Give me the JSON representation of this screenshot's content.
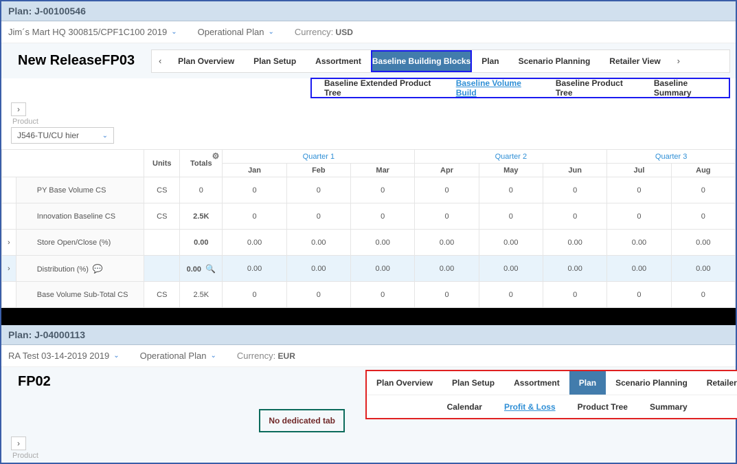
{
  "top": {
    "plan_header": "Plan: J-00100546",
    "selector1": "Jim´s Mart HQ 300815/CPF1C100  2019",
    "selector2": "Operational Plan",
    "currency_label": "Currency:",
    "currency": "USD",
    "annotation": "New ReleaseFP03",
    "tabs": {
      "prev": "‹",
      "next": "›",
      "items": [
        "Plan Overview",
        "Plan Setup",
        "Assortment",
        "Baseline Building Blocks",
        "Plan",
        "Scenario Planning",
        "Retailer View"
      ],
      "active_index": 3
    },
    "subtabs": {
      "items": [
        "Baseline Extended Product Tree",
        "Baseline Volume Build",
        "Baseline Product Tree",
        "Baseline Summary"
      ],
      "active_index": 1
    },
    "product_label": "Product",
    "product_dropdown": "J546-TU/CU hier",
    "table": {
      "units_header": "Units",
      "totals_header": "Totals",
      "quarters": [
        "Quarter 1",
        "Quarter 2",
        "Quarter 3"
      ],
      "months": [
        "Jan",
        "Feb",
        "Mar",
        "Apr",
        "May",
        "Jun",
        "Jul",
        "Aug"
      ],
      "rows": [
        {
          "label": "PY Base Volume  CS",
          "units": "CS",
          "total": "0",
          "vals": [
            "0",
            "0",
            "0",
            "0",
            "0",
            "0",
            "0",
            "0"
          ],
          "expandable": false
        },
        {
          "label": "Innovation Baseline    CS",
          "units": "CS",
          "total": "2.5K",
          "vals": [
            "0",
            "0",
            "0",
            "0",
            "0",
            "0",
            "0",
            "0"
          ],
          "expandable": false,
          "bold_total": true
        },
        {
          "label": "Store Open/Close (%)",
          "units": "",
          "total": "0.00",
          "vals": [
            "0.00",
            "0.00",
            "0.00",
            "0.00",
            "0.00",
            "0.00",
            "0.00",
            "0.00"
          ],
          "expandable": true,
          "bold_total": true
        },
        {
          "label": "Distribution (%)",
          "units": "",
          "total": "0.00",
          "vals": [
            "0.00",
            "0.00",
            "0.00",
            "0.00",
            "0.00",
            "0.00",
            "0.00",
            "0.00"
          ],
          "expandable": true,
          "highlight": true,
          "comment_icon": true,
          "zoom_icon": true,
          "bold_total": true
        },
        {
          "label": "Base Volume Sub-Total  CS",
          "units": "CS",
          "total": "2.5K",
          "vals": [
            "0",
            "0",
            "0",
            "0",
            "0",
            "0",
            "0",
            "0"
          ],
          "expandable": false
        }
      ]
    }
  },
  "bottom": {
    "plan_header": "Plan: J-04000113",
    "selector1": "RA Test 03-14-2019  2019",
    "selector2": "Operational Plan",
    "currency_label": "Currency:",
    "currency": "EUR",
    "annotation": "FP02",
    "no_tab_label": "No dedicated tab",
    "tabs": {
      "items": [
        "Plan Overview",
        "Plan Setup",
        "Assortment",
        "Plan",
        "Scenario Planning",
        "Retailer View"
      ],
      "active_index": 3
    },
    "subtabs": {
      "items": [
        "Calendar",
        "Profit & Loss",
        "Product Tree",
        "Summary"
      ],
      "active_index": 1
    },
    "product_label": "Product"
  },
  "colors": {
    "header_bg": "#d1e0ee",
    "active_tab": "#427cac",
    "link_blue": "#2f8fd6",
    "blue_outline": "#1a1af0",
    "red_outline": "#e02020",
    "teal_box": "#0a6a5a",
    "teal_text": "#702828"
  }
}
